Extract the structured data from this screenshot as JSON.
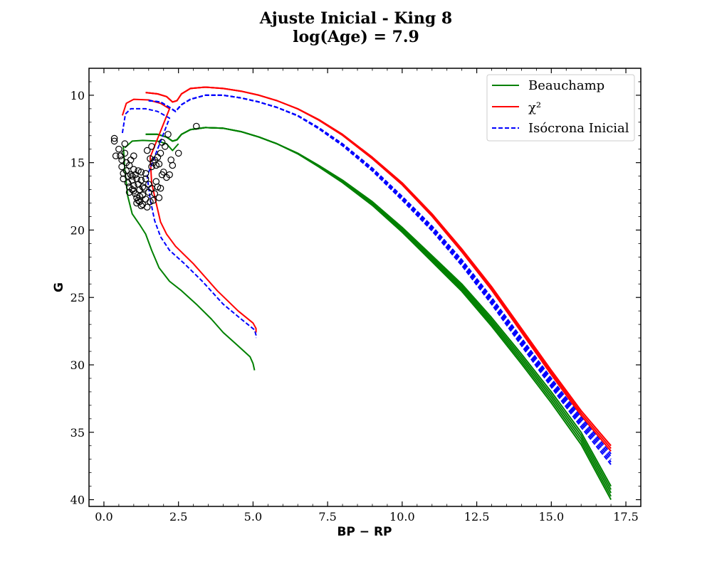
{
  "chart_data": {
    "type": "scatter",
    "title": "Ajuste Inicial - King 8",
    "subtitle": "log(Age) = 7.9",
    "xlabel": "BP − RP",
    "ylabel": "G",
    "xlim": [
      -0.5,
      18.0
    ],
    "ylim": [
      40.5,
      8.0
    ],
    "y_inverted": true,
    "grid": false,
    "legend_position": "top-right",
    "x_ticks": [
      0.0,
      2.5,
      5.0,
      7.5,
      10.0,
      12.5,
      15.0,
      17.5
    ],
    "x_tick_labels": [
      "0.0",
      "2.5",
      "5.0",
      "7.5",
      "10.0",
      "12.5",
      "15.0",
      "17.5"
    ],
    "y_ticks": [
      10,
      15,
      20,
      25,
      30,
      35,
      40
    ],
    "y_tick_labels": [
      "10",
      "15",
      "20",
      "25",
      "30",
      "35",
      "40"
    ],
    "legend": [
      {
        "label": "Beauchamp",
        "color": "#008000",
        "style": "solid"
      },
      {
        "label": "χ²",
        "color": "#ff0000",
        "style": "solid"
      },
      {
        "label": "Isócrona Inicial",
        "color": "#0000ff",
        "style": "dashed"
      }
    ],
    "series": [
      {
        "name": "Beauchamp",
        "color": "#008000",
        "dash": false,
        "points": [
          [
            1.4,
            12.9
          ],
          [
            1.8,
            12.9
          ],
          [
            2.1,
            13.1
          ],
          [
            2.3,
            13.4
          ],
          [
            2.45,
            13.3
          ],
          [
            2.6,
            12.9
          ],
          [
            2.9,
            12.55
          ],
          [
            3.4,
            12.4
          ],
          [
            4.0,
            12.45
          ],
          [
            4.6,
            12.7
          ],
          [
            5.2,
            13.1
          ],
          [
            5.8,
            13.6
          ],
          [
            6.5,
            14.3
          ],
          [
            7.2,
            15.2
          ],
          [
            8.0,
            16.3
          ],
          [
            9.0,
            17.9
          ],
          [
            10.0,
            19.8
          ],
          [
            11.0,
            21.9
          ],
          [
            12.0,
            24.0
          ],
          [
            13.0,
            26.5
          ],
          [
            14.0,
            29.2
          ],
          [
            15.0,
            32.0
          ],
          [
            16.0,
            35.0
          ],
          [
            17.0,
            39.0
          ]
        ],
        "offsets": [
          0,
          0.25,
          0.5,
          0.75,
          1.0
        ],
        "lower_branch": [
          [
            0.65,
            13.8
          ],
          [
            0.7,
            15.5
          ],
          [
            0.8,
            17.5
          ],
          [
            0.95,
            18.8
          ],
          [
            1.2,
            19.6
          ],
          [
            1.4,
            20.3
          ],
          [
            1.6,
            21.5
          ],
          [
            1.85,
            22.8
          ],
          [
            2.2,
            23.8
          ],
          [
            2.6,
            24.5
          ],
          [
            3.1,
            25.5
          ],
          [
            3.6,
            26.6
          ],
          [
            4.0,
            27.6
          ],
          [
            4.5,
            28.6
          ],
          [
            4.9,
            29.4
          ],
          [
            5.0,
            29.9
          ],
          [
            5.05,
            30.4
          ]
        ],
        "upper_branch": [
          [
            0.7,
            13.9
          ],
          [
            0.95,
            13.4
          ],
          [
            1.3,
            13.35
          ],
          [
            1.8,
            13.4
          ],
          [
            2.1,
            13.6
          ],
          [
            2.3,
            14.1
          ],
          [
            2.5,
            13.6
          ]
        ]
      },
      {
        "name": "χ²",
        "color": "#ff0000",
        "dash": false,
        "points": [
          [
            1.4,
            9.8
          ],
          [
            1.8,
            9.9
          ],
          [
            2.1,
            10.1
          ],
          [
            2.3,
            10.5
          ],
          [
            2.45,
            10.4
          ],
          [
            2.6,
            9.9
          ],
          [
            2.9,
            9.5
          ],
          [
            3.4,
            9.4
          ],
          [
            4.0,
            9.5
          ],
          [
            4.6,
            9.7
          ],
          [
            5.2,
            10.0
          ],
          [
            5.8,
            10.4
          ],
          [
            6.5,
            11.0
          ],
          [
            7.2,
            11.8
          ],
          [
            8.0,
            12.9
          ],
          [
            9.0,
            14.6
          ],
          [
            10.0,
            16.5
          ],
          [
            11.0,
            18.8
          ],
          [
            12.0,
            21.4
          ],
          [
            13.0,
            24.2
          ],
          [
            14.0,
            27.3
          ],
          [
            15.0,
            30.4
          ],
          [
            16.0,
            33.4
          ],
          [
            17.0,
            36.0
          ]
        ],
        "offsets": [
          0,
          0.2,
          0.4
        ],
        "lower_branch": [
          [
            0.62,
            11.5
          ],
          [
            0.75,
            10.6
          ],
          [
            1.0,
            10.3
          ],
          [
            1.5,
            10.35
          ],
          [
            1.9,
            10.6
          ],
          [
            2.2,
            11.0
          ],
          [
            1.55,
            14.6
          ],
          [
            1.6,
            16.5
          ],
          [
            1.75,
            18.0
          ],
          [
            1.9,
            19.4
          ],
          [
            2.1,
            20.3
          ],
          [
            2.4,
            21.2
          ],
          [
            3.0,
            22.5
          ],
          [
            3.8,
            24.5
          ],
          [
            4.5,
            26.0
          ],
          [
            5.0,
            26.9
          ],
          [
            5.1,
            27.3
          ],
          [
            5.1,
            27.6
          ]
        ],
        "upper_branch": []
      },
      {
        "name": "Isócrona Inicial",
        "color": "#0000ff",
        "dash": true,
        "points": [
          [
            1.5,
            10.4
          ],
          [
            1.9,
            10.5
          ],
          [
            2.2,
            10.9
          ],
          [
            2.4,
            11.2
          ],
          [
            2.6,
            10.7
          ],
          [
            2.9,
            10.3
          ],
          [
            3.4,
            10.0
          ],
          [
            4.0,
            10.0
          ],
          [
            4.6,
            10.2
          ],
          [
            5.2,
            10.5
          ],
          [
            5.8,
            10.9
          ],
          [
            6.5,
            11.5
          ],
          [
            7.2,
            12.4
          ],
          [
            8.0,
            13.6
          ],
          [
            9.0,
            15.4
          ],
          [
            10.0,
            17.5
          ],
          [
            11.0,
            19.7
          ],
          [
            12.0,
            22.2
          ],
          [
            13.0,
            25.0
          ],
          [
            14.0,
            28.0
          ],
          [
            15.0,
            31.0
          ],
          [
            16.0,
            33.9
          ],
          [
            17.0,
            36.6
          ]
        ],
        "offsets": [
          0,
          0.2,
          0.4,
          0.6,
          0.8
        ],
        "lower_branch": [
          [
            0.62,
            12.8
          ],
          [
            0.72,
            11.4
          ],
          [
            0.9,
            11.0
          ],
          [
            1.4,
            11.0
          ],
          [
            1.8,
            11.2
          ],
          [
            2.2,
            11.7
          ],
          [
            1.45,
            16.0
          ],
          [
            1.55,
            17.7
          ],
          [
            1.7,
            19.3
          ],
          [
            1.9,
            20.5
          ],
          [
            2.2,
            21.5
          ],
          [
            2.7,
            22.5
          ],
          [
            3.3,
            23.8
          ],
          [
            4.0,
            25.5
          ],
          [
            4.6,
            26.6
          ],
          [
            5.05,
            27.4
          ],
          [
            5.1,
            27.8
          ],
          [
            5.1,
            28.0
          ]
        ],
        "upper_branch": []
      }
    ],
    "observed_stars": [
      [
        0.35,
        13.2
      ],
      [
        0.35,
        13.4
      ],
      [
        0.4,
        14.5
      ],
      [
        0.5,
        14.0
      ],
      [
        0.55,
        14.5
      ],
      [
        0.6,
        14.8
      ],
      [
        0.6,
        15.3
      ],
      [
        0.65,
        15.8
      ],
      [
        0.65,
        16.2
      ],
      [
        0.7,
        13.6
      ],
      [
        0.7,
        14.3
      ],
      [
        0.75,
        15.0
      ],
      [
        0.75,
        15.6
      ],
      [
        0.8,
        16.0
      ],
      [
        0.8,
        16.5
      ],
      [
        0.85,
        16.8
      ],
      [
        0.85,
        15.2
      ],
      [
        0.9,
        14.8
      ],
      [
        0.9,
        15.9
      ],
      [
        0.95,
        16.3
      ],
      [
        0.95,
        17.0
      ],
      [
        1.0,
        14.5
      ],
      [
        1.0,
        15.5
      ],
      [
        1.0,
        16.7
      ],
      [
        1.05,
        17.3
      ],
      [
        1.05,
        15.9
      ],
      [
        1.1,
        16.2
      ],
      [
        1.1,
        17.6
      ],
      [
        1.15,
        16.6
      ],
      [
        1.15,
        15.6
      ],
      [
        1.2,
        17.0
      ],
      [
        1.2,
        17.9
      ],
      [
        1.25,
        16.3
      ],
      [
        1.25,
        15.7
      ],
      [
        1.3,
        17.4
      ],
      [
        1.3,
        18.1
      ],
      [
        1.35,
        16.9
      ],
      [
        1.4,
        17.7
      ],
      [
        1.4,
        16.2
      ],
      [
        1.45,
        18.3
      ],
      [
        1.45,
        14.1
      ],
      [
        1.5,
        17.2
      ],
      [
        1.5,
        16.6
      ],
      [
        1.55,
        17.9
      ],
      [
        1.55,
        14.7
      ],
      [
        1.6,
        15.3
      ],
      [
        1.6,
        13.8
      ],
      [
        1.65,
        15.0
      ],
      [
        1.7,
        14.8
      ],
      [
        1.75,
        15.2
      ],
      [
        1.8,
        14.6
      ],
      [
        1.85,
        15.1
      ],
      [
        1.85,
        17.6
      ],
      [
        1.9,
        14.3
      ],
      [
        1.9,
        16.9
      ],
      [
        1.95,
        13.5
      ],
      [
        1.95,
        15.9
      ],
      [
        2.0,
        15.7
      ],
      [
        2.05,
        13.8
      ],
      [
        2.1,
        16.1
      ],
      [
        2.15,
        12.9
      ],
      [
        2.2,
        15.9
      ],
      [
        2.25,
        14.8
      ],
      [
        2.3,
        15.2
      ],
      [
        2.5,
        14.3
      ],
      [
        3.1,
        12.3
      ],
      [
        1.8,
        16.8
      ],
      [
        1.7,
        17.3
      ],
      [
        1.65,
        17.8
      ],
      [
        1.2,
        17.5
      ],
      [
        1.1,
        18.0
      ],
      [
        1.0,
        17.1
      ],
      [
        0.95,
        16.0
      ],
      [
        1.3,
        16.8
      ],
      [
        1.4,
        15.8
      ],
      [
        1.15,
        17.8
      ],
      [
        1.25,
        18.2
      ],
      [
        0.85,
        17.2
      ],
      [
        1.6,
        16.9
      ],
      [
        1.75,
        16.4
      ]
    ]
  }
}
